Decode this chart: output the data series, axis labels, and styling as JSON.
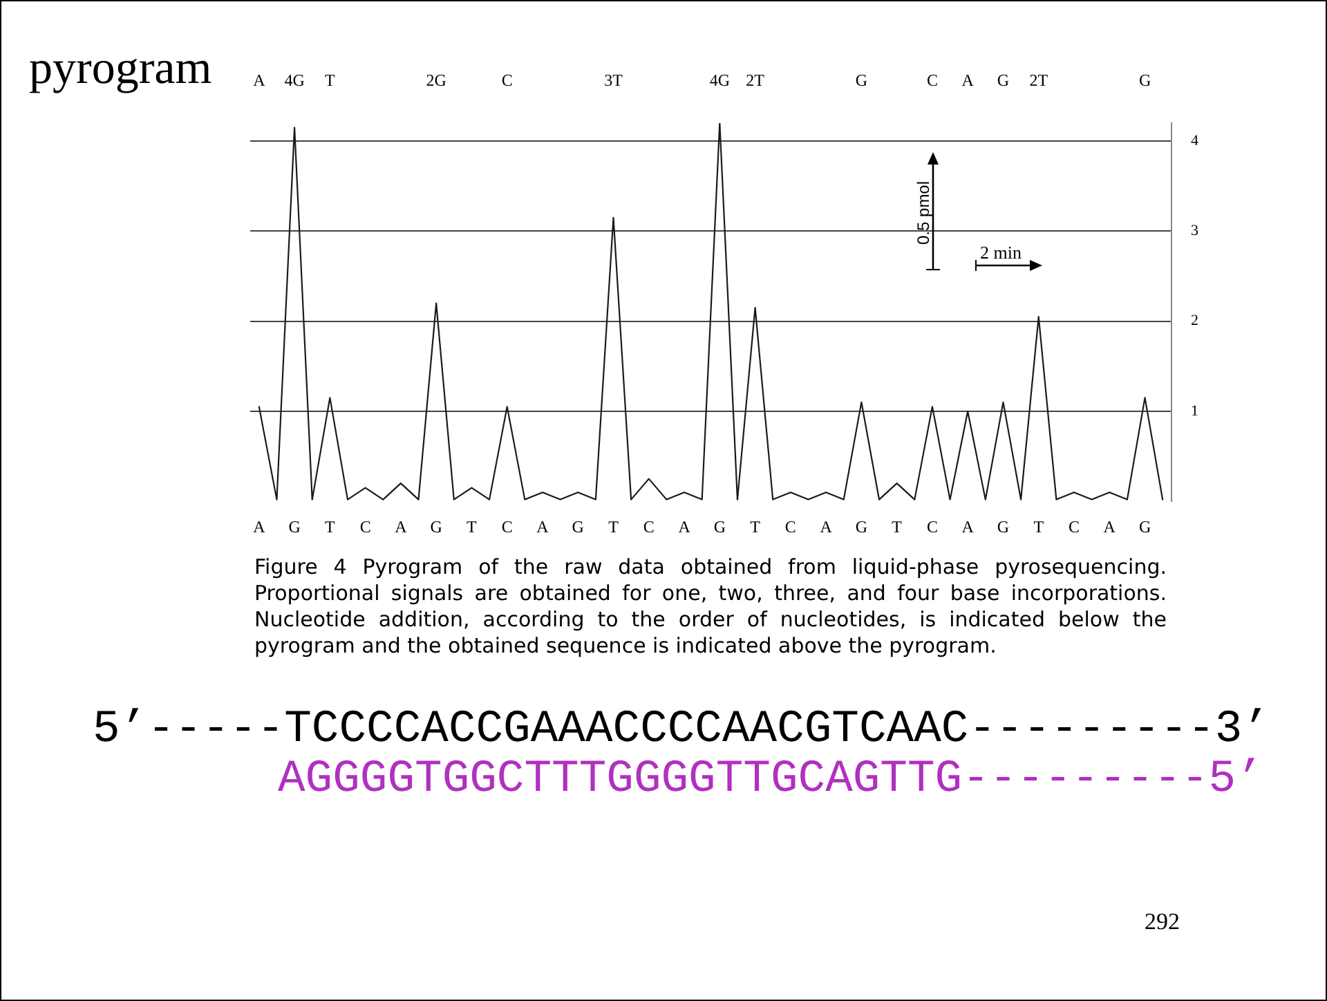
{
  "chart_data": {
    "type": "line",
    "title": "pyrogram",
    "categories": [
      "A",
      null,
      "G",
      null,
      "T",
      null,
      "C",
      null,
      "A",
      null,
      "G",
      null,
      "T",
      null,
      "C",
      null,
      "A",
      null,
      "G",
      null,
      "T",
      null,
      "C",
      null,
      "A",
      null,
      "G",
      null,
      "T",
      null,
      "C",
      null,
      "A",
      null,
      "G",
      null,
      "T",
      null,
      "C",
      null,
      "A",
      null,
      "G",
      null,
      "T",
      null,
      "C",
      null,
      "A",
      null,
      "G",
      null
    ],
    "values": [
      1.05,
      0.02,
      4.15,
      0.02,
      1.15,
      0.02,
      0.15,
      0.02,
      0.2,
      0.02,
      2.2,
      0.02,
      0.15,
      0.02,
      1.05,
      0.02,
      0.1,
      0.02,
      0.1,
      0.02,
      3.15,
      0.02,
      0.25,
      0.02,
      0.1,
      0.02,
      4.2,
      0.02,
      2.15,
      0.02,
      0.1,
      0.02,
      0.1,
      0.02,
      1.1,
      0.02,
      0.2,
      0.02,
      1.05,
      0.02,
      1.0,
      0.02,
      1.1,
      0.02,
      2.05,
      0.02,
      0.1,
      0.02,
      0.1,
      0.02,
      1.15,
      0.02
    ],
    "value_labels": [
      "A",
      null,
      "4G",
      null,
      "T",
      null,
      null,
      null,
      null,
      null,
      "2G",
      null,
      null,
      null,
      "C",
      null,
      null,
      null,
      null,
      null,
      "3T",
      null,
      null,
      null,
      null,
      null,
      "4G",
      null,
      "2T",
      null,
      null,
      null,
      null,
      null,
      "G",
      null,
      null,
      null,
      "C",
      null,
      "A",
      null,
      "G",
      null,
      "2T",
      null,
      null,
      null,
      null,
      null,
      "G",
      null
    ],
    "color": "#1a1a1a",
    "ylim": [
      0,
      4.2
    ],
    "yticks": [
      1,
      2,
      3,
      4
    ],
    "grid": "y",
    "marker": "none",
    "annotations": [
      "0.5 pmol",
      "2 min",
      "Figure 4 Pyrogram of the raw data obtained from liquid-phase pyrosequencing. Proportional signals are obtained for one, two, three, and four base incorporations. Nucleotide addition, according to the order of nucleotides, is indicated below the pyrogram and the obtained sequence is indicated above the pyrogram.",
      "5’-----TCCCCACCGAAACCCCAACGTCAAC---------3’",
      "AGGGGTGGCTTTGGGGTTGCAGTTG---------5’",
      "292"
    ]
  }
}
